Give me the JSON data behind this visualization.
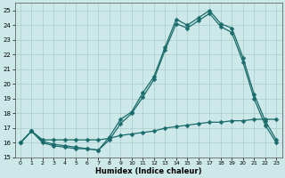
{
  "xlabel": "Humidex (Indice chaleur)",
  "bg_color": "#cce8e8",
  "grid_color": "#aacccc",
  "line_color": "#1a6b6b",
  "xlim": [
    -0.5,
    23.5
  ],
  "ylim": [
    15,
    25.5
  ],
  "yticks": [
    15,
    16,
    17,
    18,
    19,
    20,
    21,
    22,
    23,
    24,
    25
  ],
  "xticks": [
    0,
    1,
    2,
    3,
    4,
    5,
    6,
    7,
    8,
    9,
    10,
    11,
    12,
    13,
    14,
    15,
    16,
    17,
    18,
    19,
    20,
    21,
    22,
    23
  ],
  "line1_y": [
    16.0,
    16.8,
    16.0,
    15.8,
    15.7,
    15.6,
    15.6,
    15.5,
    16.4,
    17.6,
    18.1,
    19.4,
    20.5,
    22.5,
    24.4,
    24.0,
    24.5,
    25.0,
    24.1,
    23.8,
    21.8,
    19.3,
    17.5,
    16.2
  ],
  "line2_y": [
    16.0,
    16.8,
    16.1,
    15.9,
    15.8,
    15.7,
    15.6,
    15.5,
    16.2,
    17.3,
    18.0,
    19.1,
    20.3,
    22.3,
    24.1,
    23.8,
    24.3,
    24.8,
    23.9,
    23.5,
    21.5,
    19.0,
    17.2,
    16.0
  ],
  "line3_y": [
    16.0,
    16.8,
    16.2,
    16.2,
    16.2,
    16.2,
    16.2,
    16.2,
    16.3,
    16.5,
    16.6,
    16.7,
    16.8,
    17.0,
    17.1,
    17.2,
    17.3,
    17.4,
    17.4,
    17.5,
    17.5,
    17.6,
    17.6,
    17.6
  ],
  "markersize": 2.5,
  "linewidth": 0.9
}
